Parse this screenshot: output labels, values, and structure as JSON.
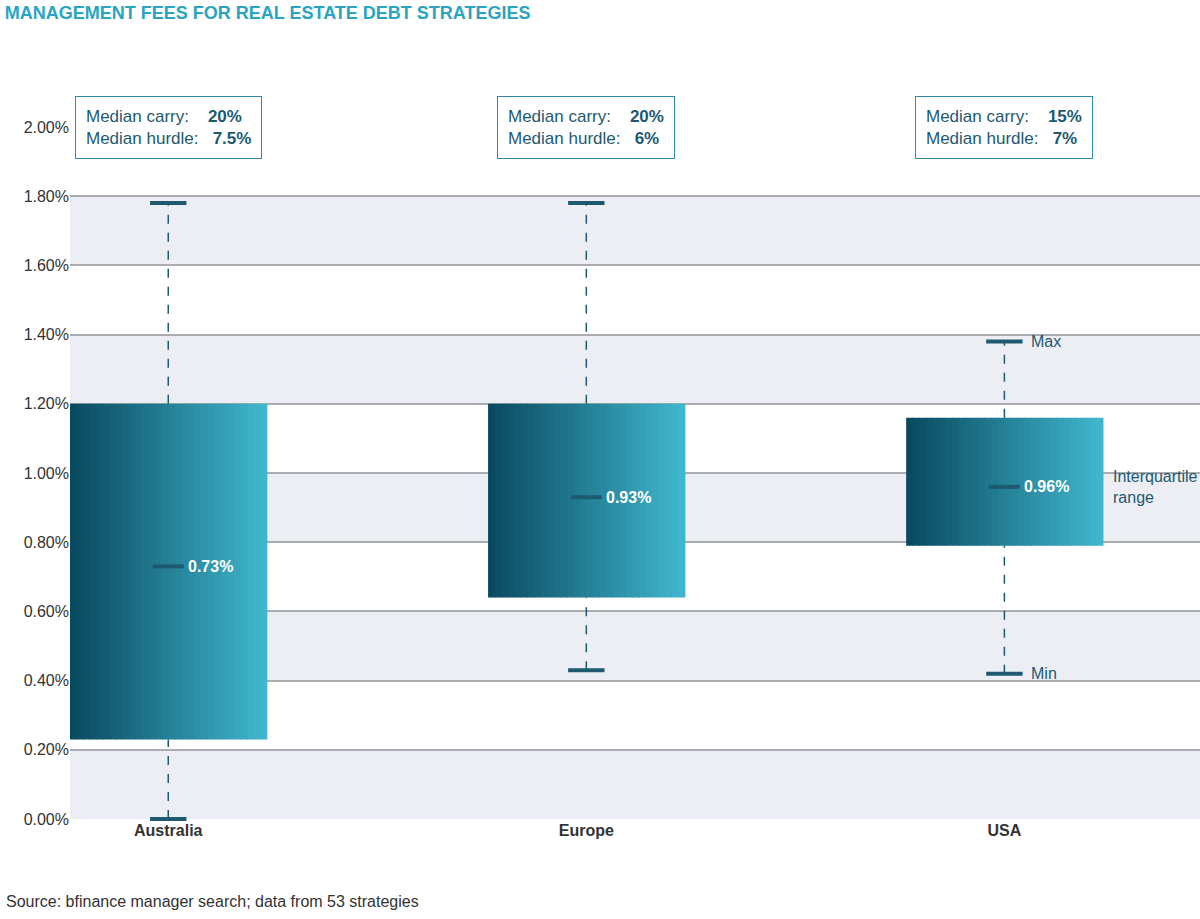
{
  "chart_data": {
    "type": "box",
    "title": "MANAGEMENT FEES FOR REAL ESTATE DEBT STRATEGIES",
    "categories": [
      "Australia",
      "Europe",
      "USA"
    ],
    "min": [
      0.0,
      0.43,
      0.42
    ],
    "q1": [
      0.23,
      0.64,
      0.79
    ],
    "median": [
      0.73,
      0.93,
      0.96
    ],
    "value_labels": [
      "0.73%",
      "0.93%",
      "0.96%"
    ],
    "q3": [
      1.2,
      1.2,
      1.16
    ],
    "max": [
      1.78,
      1.78,
      1.38
    ],
    "color": "#1d5a70",
    "data_labels": true,
    "grid": true,
    "ylim": [
      0,
      2.0
    ],
    "yticks": [
      {
        "value": 0,
        "label": "0.00%"
      },
      {
        "value": 0.2,
        "label": "0.20%"
      },
      {
        "value": 0.4,
        "label": "0.40%"
      },
      {
        "value": 0.6,
        "label": "0.60%"
      },
      {
        "value": 0.8,
        "label": "0.80%"
      },
      {
        "value": 1.0,
        "label": "1.00%"
      },
      {
        "value": 1.2,
        "label": "1.20%"
      },
      {
        "value": 1.4,
        "label": "1.40%"
      },
      {
        "value": 1.6,
        "label": "1.60%"
      },
      {
        "value": 1.8,
        "label": "1.80%"
      },
      {
        "value": 2.0,
        "label": "2.00%"
      }
    ],
    "annotations": [
      {
        "category": "Australia",
        "lines": [
          {
            "label": "Median carry:",
            "value": "20%"
          },
          {
            "label": "Median hurdle:",
            "value": "7.5%"
          }
        ]
      },
      {
        "category": "Europe",
        "lines": [
          {
            "label": "Median carry:",
            "value": "20%"
          },
          {
            "label": "Median hurdle:",
            "value": "6%"
          }
        ]
      },
      {
        "category": "USA",
        "lines": [
          {
            "label": "Median carry:",
            "value": "15%"
          },
          {
            "label": "Median hurdle:",
            "value": "7%"
          }
        ]
      }
    ],
    "callouts": {
      "category": "USA",
      "max": "Max",
      "min": "Min",
      "box": "Interquartile range"
    },
    "source": "Source: bfinance manager search; data from 53 strategies"
  }
}
